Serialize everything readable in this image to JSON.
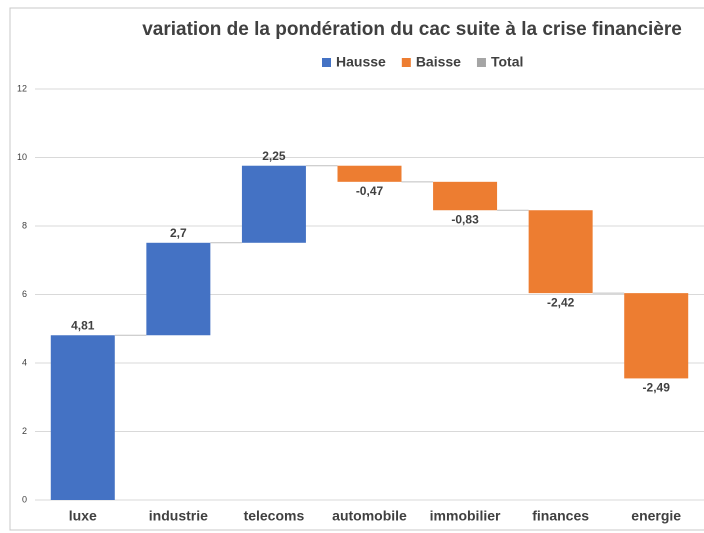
{
  "chart_data": {
    "type": "waterfall",
    "title": "variation de la pondération du cac suite à la crise financière",
    "legend": [
      {
        "name": "Hausse",
        "color": "#4472c4"
      },
      {
        "name": "Baisse",
        "color": "#ed7d31"
      },
      {
        "name": "Total",
        "color": "#a5a5a5"
      }
    ],
    "categories": [
      "luxe",
      "industrie",
      "telecoms",
      "automobile",
      "immobilier",
      "finances",
      "energie"
    ],
    "values": [
      4.81,
      2.7,
      2.25,
      -0.47,
      -0.83,
      -2.42,
      -2.49
    ],
    "value_labels": [
      "4,81",
      "2,7",
      "2,25",
      "-0,47",
      "-0,83",
      "-2,42",
      "-2,49"
    ],
    "ylim": [
      0,
      12
    ],
    "yticks": [
      0,
      2,
      4,
      6,
      8,
      10,
      12
    ],
    "grid": true
  }
}
